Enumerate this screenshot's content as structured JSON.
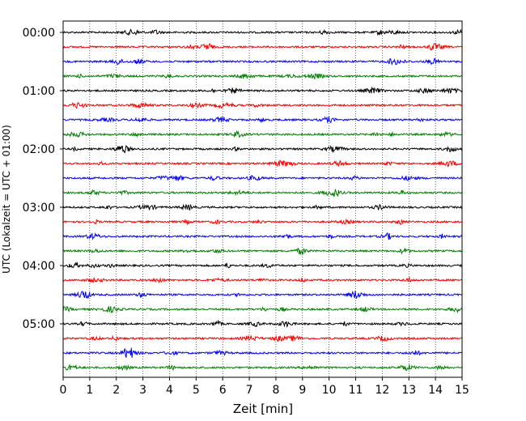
{
  "chart_data": {
    "type": "line",
    "title": "",
    "xlabel": "Zeit  [min]",
    "ylabel": "UTC (Lokalzeit = UTC + 01:00)",
    "xlim": [
      0,
      15
    ],
    "x_ticks": [
      "0",
      "1",
      "2",
      "3",
      "4",
      "5",
      "6",
      "7",
      "8",
      "9",
      "10",
      "11",
      "12",
      "13",
      "14",
      "15"
    ],
    "y_ticks": [
      "00:00",
      "01:00",
      "02:00",
      "03:00",
      "04:00",
      "05:00"
    ],
    "grid": "vertical dotted",
    "legend": "none",
    "trace_colors": [
      "#000000",
      "#ff0000",
      "#0000ff",
      "#008000"
    ],
    "traces": [
      {
        "start": "00:00"
      },
      {
        "start": "00:15"
      },
      {
        "start": "00:30"
      },
      {
        "start": "00:45"
      },
      {
        "start": "01:00"
      },
      {
        "start": "01:15"
      },
      {
        "start": "01:30"
      },
      {
        "start": "01:45"
      },
      {
        "start": "02:00"
      },
      {
        "start": "02:15"
      },
      {
        "start": "02:30"
      },
      {
        "start": "02:45"
      },
      {
        "start": "03:00"
      },
      {
        "start": "03:15"
      },
      {
        "start": "03:30"
      },
      {
        "start": "03:45"
      },
      {
        "start": "04:00"
      },
      {
        "start": "04:15"
      },
      {
        "start": "04:30"
      },
      {
        "start": "04:45"
      },
      {
        "start": "05:00"
      },
      {
        "start": "05:15"
      },
      {
        "start": "05:30"
      },
      {
        "start": "05:45"
      }
    ]
  }
}
